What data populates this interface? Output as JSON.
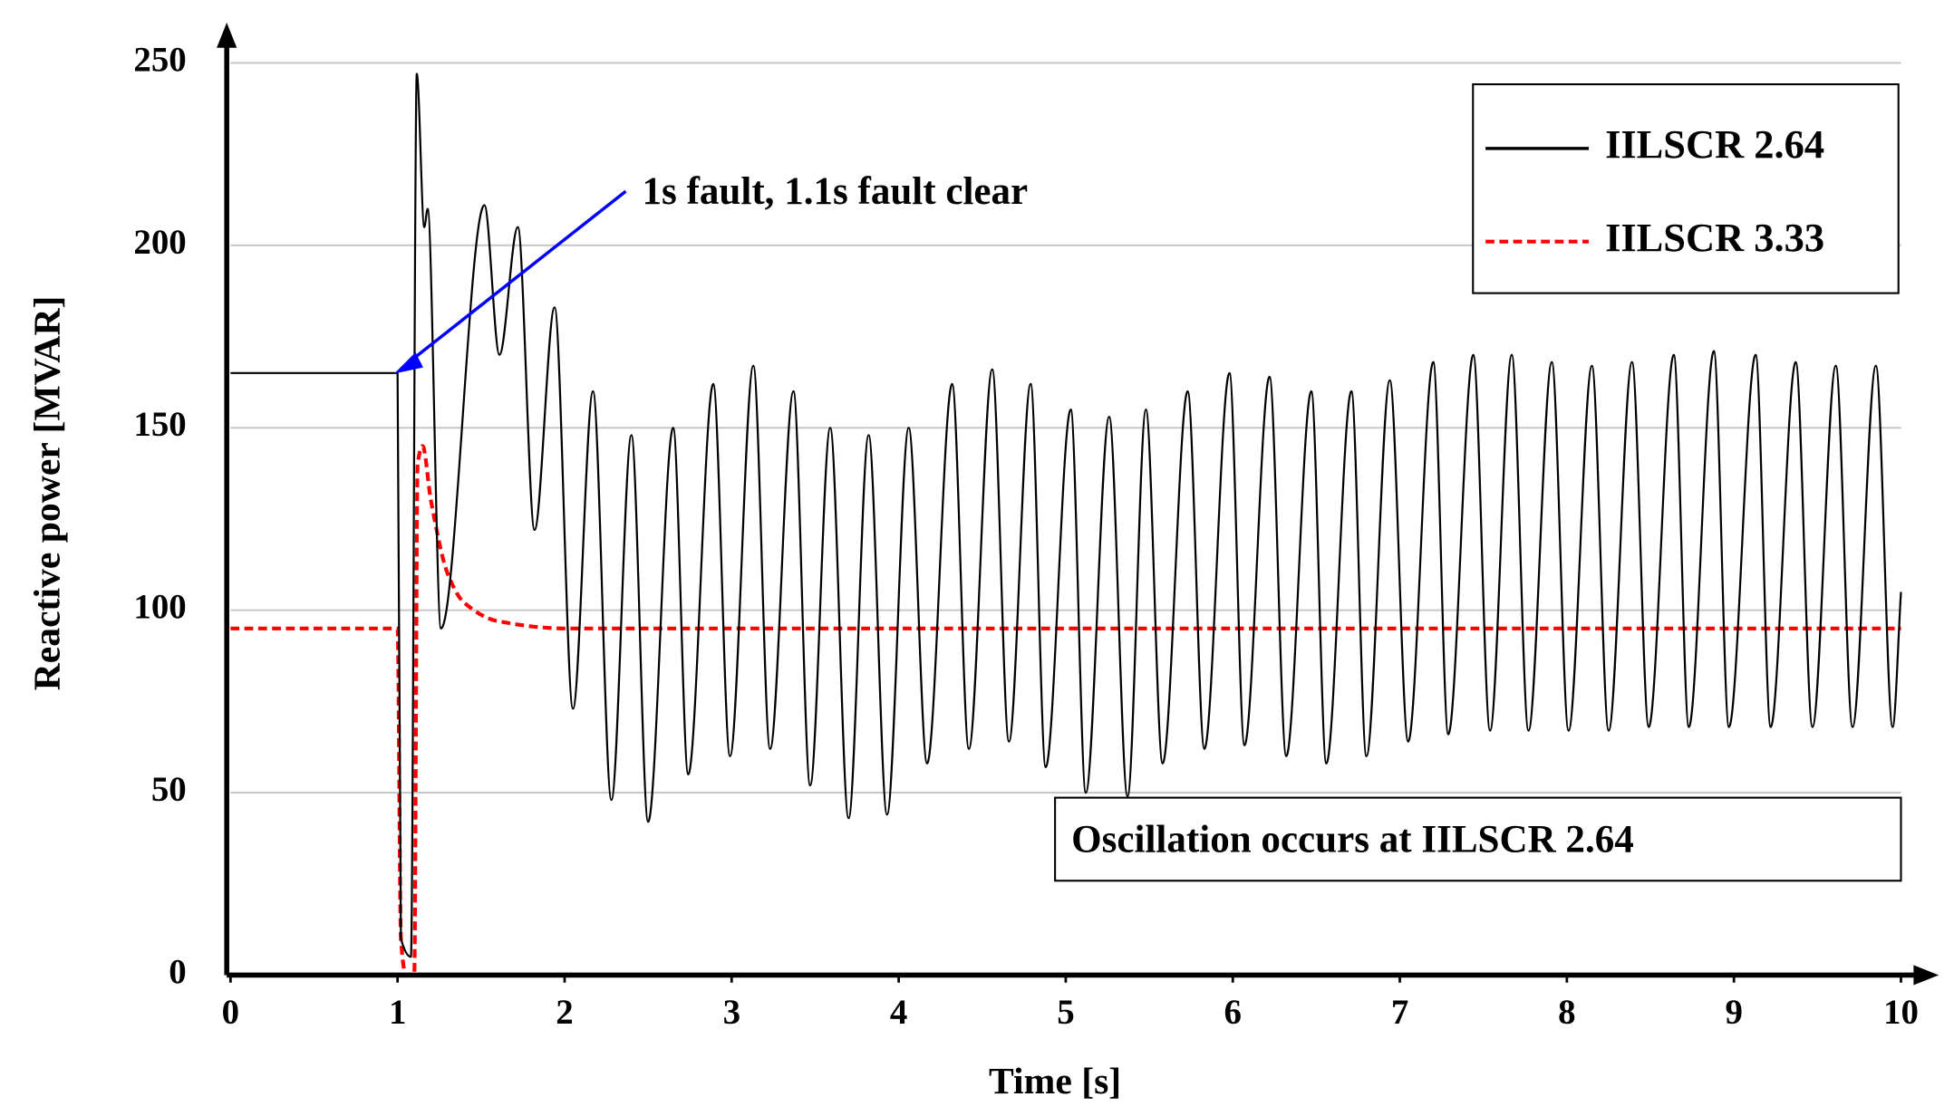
{
  "chart_data": {
    "type": "line",
    "xlabel": "Time [s]",
    "ylabel": "Reactive power [MVAR]",
    "xlim": [
      0,
      10
    ],
    "ylim": [
      0,
      250
    ],
    "xticks": [
      0,
      1,
      2,
      3,
      4,
      5,
      6,
      7,
      8,
      9,
      10
    ],
    "yticks": [
      0,
      50,
      100,
      150,
      200,
      250
    ],
    "grid": true,
    "legend": "upper right",
    "annotations": [
      {
        "text": "1s fault, 1.1s fault clear",
        "color": "#0000ff"
      },
      {
        "text": "Oscillation occurs at IILSCR 2.64"
      }
    ],
    "series": [
      {
        "name": "IILSCR 2.64",
        "color": "#000000",
        "dashed": false,
        "x": [
          0,
          1.0,
          1.02,
          1.08,
          1.115,
          1.16,
          1.18,
          1.26,
          1.52,
          1.61,
          1.72,
          1.82,
          1.94,
          2.05,
          2.17,
          2.28,
          2.4,
          2.5,
          2.65,
          2.74,
          2.89,
          2.99,
          3.13,
          3.23,
          3.37,
          3.47,
          3.59,
          3.7,
          3.82,
          3.93,
          4.06,
          4.17,
          4.32,
          4.42,
          4.56,
          4.66,
          4.79,
          4.88,
          5.03,
          5.12,
          5.26,
          5.37,
          5.48,
          5.58,
          5.73,
          5.83,
          5.98,
          6.07,
          6.22,
          6.32,
          6.47,
          6.56,
          6.71,
          6.8,
          6.94,
          7.05,
          7.2,
          7.29,
          7.44,
          7.54,
          7.67,
          7.77,
          7.91,
          8.01,
          8.15,
          8.25,
          8.39,
          8.49,
          8.64,
          8.73,
          8.88,
          8.97,
          9.13,
          9.22,
          9.37,
          9.47,
          9.61,
          9.71,
          9.85,
          9.95,
          10.0
        ],
        "values": [
          165,
          165,
          10,
          5,
          247,
          205,
          210,
          95,
          211,
          170,
          205,
          122,
          183,
          73,
          160,
          48,
          148,
          42,
          150,
          55,
          162,
          60,
          167,
          62,
          160,
          52,
          150,
          43,
          148,
          44,
          150,
          58,
          162,
          62,
          166,
          64,
          162,
          57,
          155,
          50,
          153,
          49,
          155,
          58,
          160,
          62,
          165,
          63,
          164,
          60,
          160,
          58,
          160,
          60,
          163,
          64,
          168,
          66,
          170,
          67,
          170,
          67,
          168,
          67,
          167,
          67,
          168,
          68,
          170,
          68,
          171,
          68,
          170,
          68,
          168,
          68,
          167,
          68,
          167,
          68,
          105
        ]
      },
      {
        "name": "IILSCR 3.33",
        "color": "#ff0000",
        "dashed": true,
        "x": [
          0,
          1.0,
          1.02,
          1.05,
          1.08,
          1.1,
          1.12,
          1.15,
          1.2,
          1.3,
          1.4,
          1.6,
          2.0,
          10
        ],
        "values": [
          95,
          95,
          10,
          0,
          0,
          0,
          140,
          145,
          130,
          110,
          102,
          97,
          95,
          95
        ]
      }
    ]
  }
}
